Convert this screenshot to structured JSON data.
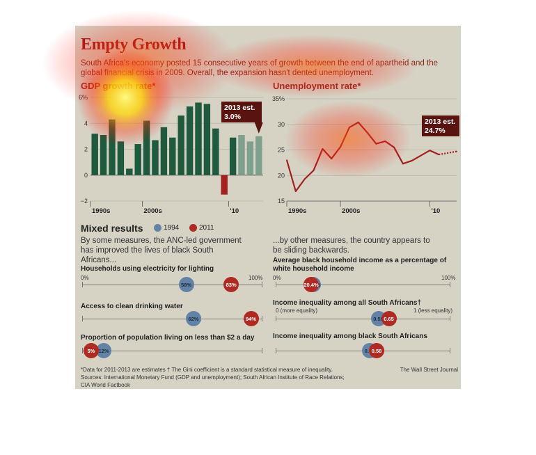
{
  "header": {
    "title": "Empty Growth",
    "subtitle": "South Africa's economy posted 15 consecutive years of growth between the end of apartheid and the global financial crisis in 2009. Overall, the expansion hasn't dented unemployment."
  },
  "colors": {
    "bar_green": "#1f5a3e",
    "bar_estimate": "#7fa08c",
    "bar_negative": "#a3201f",
    "line_red": "#a3201f",
    "dot_1994": "#6383a6",
    "dot_2011": "#b02a24",
    "panel_bg": "#d6d2c4"
  },
  "chart_data": [
    {
      "type": "bar",
      "title": "GDP growth rate*",
      "yticks": [
        "6%",
        "4",
        "2",
        "0",
        "−2"
      ],
      "ylim": [
        -2,
        6
      ],
      "xtick_labels": [
        "1990s",
        "2000s",
        "'10"
      ],
      "x": [
        1994,
        1995,
        1996,
        1997,
        1998,
        1999,
        2000,
        2001,
        2002,
        2003,
        2004,
        2005,
        2006,
        2007,
        2008,
        2009,
        2010,
        2011,
        2012,
        2013
      ],
      "values": [
        3.2,
        3.1,
        4.3,
        2.6,
        0.5,
        2.4,
        4.2,
        2.7,
        3.7,
        2.9,
        4.6,
        5.3,
        5.6,
        5.5,
        3.6,
        -1.5,
        2.9,
        3.1,
        2.6,
        3.0
      ],
      "estimate_from": 2011,
      "annotation": {
        "label": "2013 est.",
        "value": "3.0%"
      }
    },
    {
      "type": "line",
      "title": "Unemployment rate*",
      "yticks": [
        "35%",
        "30",
        "25",
        "20",
        "15"
      ],
      "ylim": [
        15,
        35
      ],
      "xtick_labels": [
        "1990s",
        "2000s",
        "'10"
      ],
      "x": [
        1994,
        1995,
        1996,
        1997,
        1998,
        1999,
        2000,
        2001,
        2002,
        2003,
        2004,
        2005,
        2006,
        2007,
        2008,
        2009,
        2010,
        2011,
        2012,
        2013
      ],
      "values": [
        23.0,
        16.9,
        19.3,
        21.0,
        25.2,
        23.3,
        25.6,
        29.4,
        30.4,
        28.4,
        26.2,
        26.7,
        25.5,
        22.3,
        22.9,
        23.9,
        24.9,
        24.1,
        24.4,
        24.7
      ],
      "estimate_from": 2011,
      "annotation": {
        "label": "2013 est.",
        "value": "24.7%"
      }
    }
  ],
  "mixed": {
    "title": "Mixed results",
    "legend_1994": "1994",
    "legend_2011": "2011",
    "left_intro": "By some measures, the ANC-led government has improved the lives of black South Africans...",
    "right_intro": "...by other measures, the country appears to be sliding backwards.",
    "scale_min": "0%",
    "scale_max": "100%",
    "gini_min": "0 (more equality)",
    "gini_max": "1 (less equality)",
    "indicators": {
      "electricity": {
        "label": "Households using electricity for lighting",
        "v1994": 58,
        "v2011": 83,
        "t1994": "58%",
        "t2011": "83%"
      },
      "water": {
        "label": "Access to clean drinking water",
        "v1994": 62,
        "v2011": 94,
        "t1994": "62%",
        "t2011": "94%"
      },
      "poverty": {
        "label": "Proportion of population living on less than $2 a day",
        "v1994": 12,
        "v2011": 5,
        "t1994": "12%",
        "t2011": "5%"
      },
      "income": {
        "label": "Average black household income as a percentage of white household income",
        "v1994": 21.5,
        "v2011": 20.4,
        "t1994": "21.5%",
        "t2011": "20.4%"
      },
      "gini_all": {
        "label": "Income inequality among all South Africans†",
        "v1994": 0.59,
        "v2011": 0.65,
        "t1994": "0.59",
        "t2011": "0.65"
      },
      "gini_black": {
        "label": "Income inequality among black South Africans",
        "v1994": 0.54,
        "v2011": 0.58,
        "t1994": "0.54",
        "t2011": "0.58"
      }
    }
  },
  "footer": {
    "footnote": "*Data for 2011-2013 are estimates  † The Gini coefficient is a standard statistical measure of inequality. Sources: International Monetary Fund (GDP and unemployment); South African Institute of Race Relations; CIA World Factbook",
    "sources": "The Wall Street Journal"
  }
}
